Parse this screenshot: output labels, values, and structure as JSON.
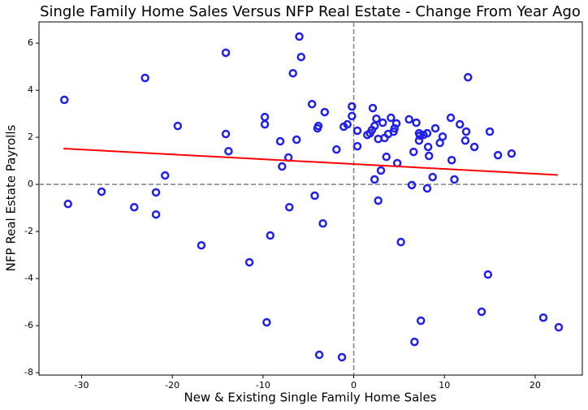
{
  "chart_data": {
    "type": "scatter",
    "title": "Single Family Home Sales Versus NFP Real Estate - Change From Year Ago",
    "x_label": "New & Existing Single Family Home Sales",
    "y_label": "NFP Real Estate Payrolls",
    "color": "#2020e8",
    "x": [
      -31.9,
      -31.5,
      -27.8,
      -23.0,
      -24.2,
      -21.8,
      -21.8,
      -20.8,
      -19.4,
      -16.8,
      -14.1,
      -14.1,
      -13.8,
      -11.5,
      -9.8,
      -9.8,
      -9.6,
      -9.2,
      -8.1,
      -7.9,
      -7.2,
      -7.1,
      -6.7,
      -6.3,
      -6.0,
      -5.8,
      -4.6,
      -4.3,
      -4.0,
      -3.9,
      -3.8,
      -3.4,
      -3.2,
      -1.9,
      -1.3,
      -1.1,
      -0.7,
      -0.2,
      -0.2,
      0.4,
      0.4,
      1.5,
      1.8,
      2.0,
      2.1,
      2.3,
      2.3,
      2.5,
      2.7,
      2.7,
      3.0,
      3.2,
      3.4,
      3.6,
      3.8,
      4.1,
      4.4,
      4.5,
      4.7,
      4.8,
      5.2,
      6.1,
      6.4,
      6.6,
      6.7,
      6.9,
      7.2,
      7.3,
      7.2,
      7.4,
      7.7,
      8.1,
      8.1,
      8.2,
      8.3,
      8.7,
      9.0,
      9.5,
      9.8,
      10.7,
      10.8,
      11.1,
      11.7,
      12.3,
      12.4,
      12.6,
      13.3,
      14.1,
      14.8,
      15.0,
      15.9,
      17.4,
      20.9,
      22.6
    ],
    "y": [
      3.59,
      -0.83,
      -0.31,
      4.52,
      -0.97,
      -0.34,
      -1.28,
      0.38,
      2.48,
      -2.59,
      5.59,
      2.14,
      1.41,
      -3.31,
      2.86,
      2.55,
      -5.86,
      -2.17,
      1.83,
      0.76,
      1.14,
      -0.97,
      4.72,
      1.9,
      6.28,
      5.41,
      3.41,
      -0.48,
      2.38,
      2.48,
      -7.24,
      -1.66,
      3.07,
      1.48,
      -7.34,
      2.45,
      2.55,
      3.31,
      2.9,
      1.62,
      2.28,
      2.1,
      2.17,
      2.31,
      3.24,
      0.21,
      2.48,
      2.79,
      1.93,
      -0.69,
      0.59,
      2.62,
      1.97,
      1.17,
      2.14,
      2.83,
      2.24,
      2.38,
      2.59,
      0.9,
      -2.45,
      2.76,
      -0.03,
      1.38,
      -6.69,
      2.62,
      2.17,
      2.07,
      1.86,
      -5.79,
      2.1,
      2.17,
      -0.17,
      1.59,
      1.21,
      0.31,
      2.38,
      1.76,
      2.03,
      2.83,
      1.03,
      0.21,
      2.55,
      1.86,
      2.24,
      4.55,
      1.59,
      -5.41,
      -3.83,
      2.24,
      1.24,
      1.31,
      -5.66,
      -6.07
    ],
    "fit": {
      "x": [
        -32,
        22.5
      ],
      "y": [
        1.52,
        0.4
      ],
      "color": "#ff0000"
    },
    "reference_lines": {
      "x": 0,
      "y": 0,
      "color": "#808080"
    },
    "xlim": [
      -34.7,
      25.2
    ],
    "ylim": [
      -8.1,
      6.9
    ],
    "xticks": [
      -30,
      -20,
      -10,
      0,
      10,
      20
    ],
    "yticks": [
      -8,
      -6,
      -4,
      -2,
      0,
      2,
      4,
      6
    ]
  }
}
